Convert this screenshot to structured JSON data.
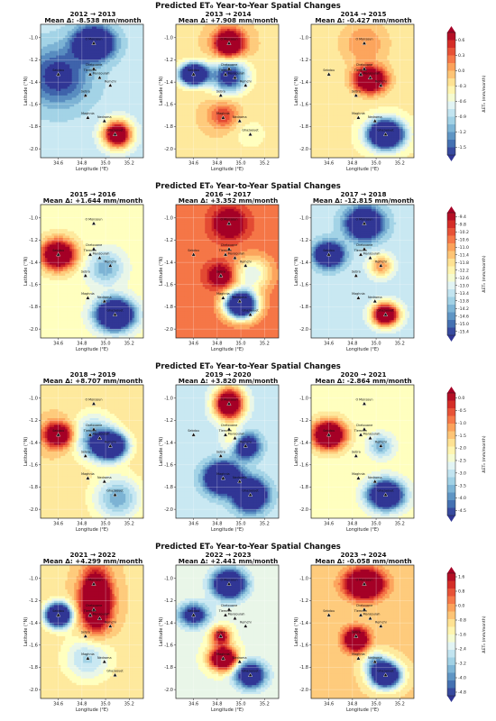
{
  "suptitles": [
    "Predicted ET₀ Year-to-Year Spatial Changes",
    "Predicted ET₀ Year-to-Year Spatial Changes",
    "Predicted ET₀ Year-to-Year Spatial Changes",
    "Predicted ET₀ Year-to-Year Spatial Changes"
  ],
  "colors": {
    "low": "#313695",
    "mid": "#ffffbf",
    "high": "#a50026"
  },
  "chart_data": {
    "type": "heatmap",
    "xlabel": "Longitude (°E)",
    "ylabel": "Latitude (°N)",
    "cbar_label": "ΔET₀ (mm/month)",
    "xlim": [
      34.45,
      35.32
    ],
    "ylim": [
      -2.08,
      -0.88
    ],
    "xticks": [
      34.6,
      34.8,
      35.0,
      35.2
    ],
    "yticks": [
      -1.0,
      -1.2,
      -1.4,
      -1.6,
      -1.8,
      -2.0
    ],
    "stations": [
      {
        "name": "O Monsoun",
        "lon": 34.9,
        "lat": -1.05
      },
      {
        "name": "Sebdou",
        "lon": 34.6,
        "lat": -1.33
      },
      {
        "name": "Chetouane",
        "lon": 34.9,
        "lat": -1.28
      },
      {
        "name": "Tlemcen",
        "lon": 34.87,
        "lat": -1.33
      },
      {
        "name": "Mansourah",
        "lon": 34.95,
        "lat": -1.36
      },
      {
        "name": "Remchi",
        "lon": 35.04,
        "lat": -1.43
      },
      {
        "name": "Sebra",
        "lon": 34.83,
        "lat": -1.52
      },
      {
        "name": "Maghnia",
        "lon": 34.85,
        "lat": -1.72
      },
      {
        "name": "Nedroma",
        "lon": 34.99,
        "lat": -1.75
      },
      {
        "name": "Ghazaouet",
        "lon": 35.08,
        "lat": -1.87
      }
    ],
    "rows": [
      {
        "cbar_ticks": [
          0.6,
          0.3,
          0.0,
          -0.3,
          -0.6,
          -0.9,
          -1.2,
          -1.5
        ],
        "cbar_range": [
          -1.65,
          0.75
        ],
        "panels": [
          {
            "title": "2012 → 2013",
            "subtitle": "Mean Δ: -8.538 mm/month",
            "base": 0.35,
            "blobs": [
              [
                34.9,
                -1.05,
                -1.0,
                0.15,
                0.13
              ],
              [
                35.1,
                -1.87,
                0.9,
                0.12,
                0.12
              ],
              [
                34.6,
                -1.35,
                -0.4,
                0.25,
                0.25
              ]
            ]
          },
          {
            "title": "2013 → 2014",
            "subtitle": "Mean Δ: +7.908 mm/month",
            "base": 0.6,
            "blobs": [
              [
                34.9,
                -1.05,
                0.8,
                0.12,
                0.12
              ],
              [
                34.6,
                -1.33,
                -1.3,
                0.11,
                0.09
              ],
              [
                34.9,
                -1.35,
                -0.7,
                0.15,
                0.14
              ],
              [
                34.85,
                -1.7,
                0.3,
                0.12,
                0.12
              ],
              [
                35.08,
                -1.87,
                -0.1,
                0.18,
                0.18
              ]
            ]
          },
          {
            "title": "2014 → 2015",
            "subtitle": "Mean Δ: -0.427 mm/month",
            "base": 0.55,
            "blobs": [
              [
                34.95,
                -1.38,
                0.85,
                0.13,
                0.11
              ],
              [
                35.08,
                -1.87,
                -1.3,
                0.14,
                0.12
              ],
              [
                34.9,
                -1.05,
                0.2,
                0.2,
                0.2
              ]
            ]
          }
        ]
      },
      {
        "cbar_ticks": [
          -9.4,
          -9.8,
          -10.2,
          -10.6,
          -11.0,
          -11.4,
          -11.8,
          -12.2,
          -12.6,
          -13.0,
          -13.4,
          -13.8,
          -14.2,
          -14.6,
          -15.0,
          -15.4
        ],
        "cbar_range": [
          -15.6,
          -9.2
        ],
        "panels": [
          {
            "title": "2015 → 2016",
            "subtitle": "Mean Δ: +1.644 mm/month",
            "base": 0.5,
            "blobs": [
              [
                34.6,
                -1.33,
                0.85,
                0.14,
                0.13
              ],
              [
                35.08,
                -1.87,
                -1.2,
                0.15,
                0.13
              ],
              [
                35.0,
                -1.45,
                -0.3,
                0.15,
                0.15
              ]
            ]
          },
          {
            "title": "2016 → 2017",
            "subtitle": "Mean Δ: +3.352 mm/month",
            "base": 0.8,
            "blobs": [
              [
                34.9,
                -1.05,
                0.5,
                0.12,
                0.12
              ],
              [
                34.83,
                -1.52,
                0.4,
                0.1,
                0.1
              ],
              [
                35.0,
                -1.78,
                -1.4,
                0.13,
                0.12
              ],
              [
                35.1,
                -1.5,
                -0.4,
                0.15,
                0.15
              ]
            ]
          },
          {
            "title": "2017 → 2018",
            "subtitle": "Mean Δ: -12.815 mm/month",
            "base": 0.35,
            "blobs": [
              [
                34.9,
                -1.05,
                -0.9,
                0.14,
                0.13
              ],
              [
                34.6,
                -1.33,
                -0.9,
                0.11,
                0.1
              ],
              [
                35.08,
                -1.87,
                1.0,
                0.11,
                0.1
              ],
              [
                35.04,
                -1.43,
                0.4,
                0.1,
                0.1
              ]
            ]
          }
        ]
      },
      {
        "cbar_ticks": [
          0.0,
          -0.5,
          -1.0,
          -1.5,
          -2.0,
          -2.5,
          -3.0,
          -3.5,
          -4.0,
          -4.5
        ],
        "cbar_range": [
          -4.7,
          0.2
        ],
        "panels": [
          {
            "title": "2018 → 2019",
            "subtitle": "Mean Δ: +8.707 mm/month",
            "base": 0.6,
            "blobs": [
              [
                34.6,
                -1.33,
                0.7,
                0.12,
                0.11
              ],
              [
                35.04,
                -1.43,
                -1.2,
                0.13,
                0.11
              ],
              [
                34.9,
                -1.35,
                -0.4,
                0.18,
                0.2
              ],
              [
                35.1,
                -1.9,
                -0.4,
                0.2,
                0.2
              ]
            ]
          },
          {
            "title": "2019 → 2020",
            "subtitle": "Mean Δ: +3.820 mm/month",
            "base": 0.35,
            "blobs": [
              [
                34.9,
                -1.05,
                1.0,
                0.12,
                0.14
              ],
              [
                34.95,
                -1.38,
                0.3,
                0.1,
                0.1
              ],
              [
                34.85,
                -1.72,
                -1.2,
                0.13,
                0.12
              ],
              [
                35.08,
                -1.87,
                -1.2,
                0.12,
                0.12
              ],
              [
                35.04,
                -1.43,
                -0.8,
                0.1,
                0.1
              ]
            ]
          },
          {
            "title": "2020 → 2021",
            "subtitle": "Mean Δ: -2.864 mm/month",
            "base": 0.5,
            "blobs": [
              [
                34.6,
                -1.33,
                0.95,
                0.13,
                0.12
              ],
              [
                35.08,
                -1.87,
                -1.1,
                0.14,
                0.12
              ],
              [
                35.04,
                -1.43,
                -0.3,
                0.1,
                0.1
              ]
            ]
          }
        ]
      },
      {
        "cbar_ticks": [
          1.6,
          0.8,
          0.0,
          -0.8,
          -1.6,
          -2.4,
          -3.2,
          -4.0,
          -4.8
        ],
        "cbar_range": [
          -5.0,
          1.8
        ],
        "panels": [
          {
            "title": "2021 → 2022",
            "subtitle": "Mean Δ: +4.299 mm/month",
            "base": 0.6,
            "blobs": [
              [
                34.92,
                -1.2,
                1.0,
                0.12,
                0.25
              ],
              [
                34.6,
                -1.33,
                -1.3,
                0.1,
                0.1
              ],
              [
                34.85,
                -1.72,
                -0.3,
                0.2,
                0.2
              ]
            ]
          },
          {
            "title": "2022 → 2023",
            "subtitle": "Mean Δ: +2.441 mm/month",
            "base": 0.45,
            "blobs": [
              [
                34.9,
                -1.05,
                -1.0,
                0.13,
                0.12
              ],
              [
                34.85,
                -1.72,
                1.0,
                0.11,
                0.1
              ],
              [
                34.83,
                -1.52,
                0.6,
                0.08,
                0.08
              ],
              [
                35.08,
                -1.87,
                -0.8,
                0.12,
                0.11
              ],
              [
                34.6,
                -1.33,
                -0.6,
                0.12,
                0.1
              ]
            ]
          },
          {
            "title": "2023 → 2024",
            "subtitle": "Mean Δ: -0.058 mm/month",
            "base": 0.62,
            "blobs": [
              [
                34.9,
                -1.05,
                1.0,
                0.15,
                0.12
              ],
              [
                34.83,
                -1.55,
                0.8,
                0.1,
                0.1
              ],
              [
                35.08,
                -1.87,
                -1.2,
                0.12,
                0.11
              ],
              [
                34.99,
                -1.75,
                -0.3,
                0.1,
                0.1
              ]
            ]
          }
        ]
      }
    ]
  }
}
